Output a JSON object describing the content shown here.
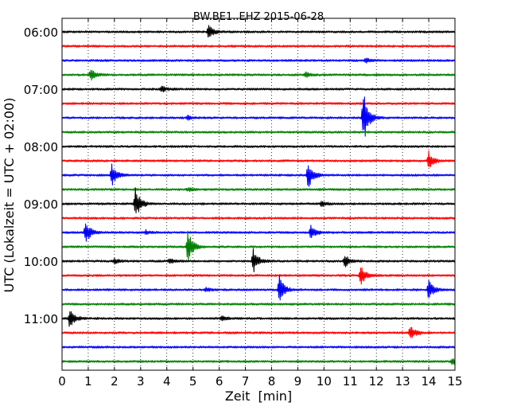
{
  "chart_data": {
    "type": "line",
    "title": "BW.BE1..EHZ 2015-06-28",
    "xlabel": "Zeit  [min]",
    "ylabel": "UTC (Lokalzeit = UTC + 02:00)",
    "xlim": [
      0,
      15
    ],
    "x_ticks": [
      0,
      1,
      2,
      3,
      4,
      5,
      6,
      7,
      8,
      9,
      10,
      11,
      12,
      13,
      14,
      15
    ],
    "x_tick_labels": [
      "0",
      "1",
      "2",
      "3",
      "4",
      "5",
      "6",
      "7",
      "8",
      "9",
      "10",
      "11",
      "12",
      "13",
      "14",
      "15"
    ],
    "row_interval_min": 15,
    "y_tick_labels": [
      "06:00",
      "07:00",
      "08:00",
      "09:00",
      "10:00",
      "11:00"
    ],
    "grid": "vertical dotted at each minute",
    "color_cycle": [
      "#000000",
      "#ff0000",
      "#0000ff",
      "#008000"
    ],
    "traces": [
      {
        "start": "06:00",
        "events": [
          {
            "t": 5.6,
            "amp": 0.35
          }
        ]
      },
      {
        "start": "06:15",
        "events": []
      },
      {
        "start": "06:30",
        "events": [
          {
            "t": 11.6,
            "amp": 0.12
          }
        ]
      },
      {
        "start": "06:45",
        "events": [
          {
            "t": 1.1,
            "amp": 0.3
          },
          {
            "t": 9.3,
            "amp": 0.12
          }
        ]
      },
      {
        "start": "07:00",
        "events": [
          {
            "t": 3.8,
            "amp": 0.15
          }
        ]
      },
      {
        "start": "07:15",
        "events": []
      },
      {
        "start": "07:30",
        "events": [
          {
            "t": 11.5,
            "amp": 1.5
          },
          {
            "t": 4.8,
            "amp": 0.1
          }
        ]
      },
      {
        "start": "07:45",
        "events": []
      },
      {
        "start": "08:00",
        "events": []
      },
      {
        "start": "08:15",
        "events": [
          {
            "t": 14.0,
            "amp": 0.45
          }
        ]
      },
      {
        "start": "08:30",
        "events": [
          {
            "t": 1.9,
            "amp": 0.55
          },
          {
            "t": 9.4,
            "amp": 0.75
          }
        ]
      },
      {
        "start": "08:45",
        "events": [
          {
            "t": 4.8,
            "amp": 0.1
          }
        ]
      },
      {
        "start": "09:00",
        "events": [
          {
            "t": 2.8,
            "amp": 0.8
          },
          {
            "t": 9.9,
            "amp": 0.15
          }
        ]
      },
      {
        "start": "09:15",
        "events": []
      },
      {
        "start": "09:30",
        "events": [
          {
            "t": 0.9,
            "amp": 0.6
          },
          {
            "t": 9.5,
            "amp": 0.35
          },
          {
            "t": 3.2,
            "amp": 0.1
          }
        ]
      },
      {
        "start": "09:45",
        "events": [
          {
            "t": 4.8,
            "amp": 0.85
          }
        ]
      },
      {
        "start": "10:00",
        "events": [
          {
            "t": 7.3,
            "amp": 0.6
          },
          {
            "t": 10.8,
            "amp": 0.3
          },
          {
            "t": 2.0,
            "amp": 0.12
          },
          {
            "t": 4.1,
            "amp": 0.12
          }
        ]
      },
      {
        "start": "10:15",
        "events": [
          {
            "t": 11.4,
            "amp": 0.55
          }
        ]
      },
      {
        "start": "10:30",
        "events": [
          {
            "t": 8.3,
            "amp": 0.7
          },
          {
            "t": 14.0,
            "amp": 0.5
          },
          {
            "t": 5.5,
            "amp": 0.1
          }
        ]
      },
      {
        "start": "10:45",
        "events": []
      },
      {
        "start": "11:00",
        "events": [
          {
            "t": 0.3,
            "amp": 0.55
          },
          {
            "t": 6.1,
            "amp": 0.12
          }
        ]
      },
      {
        "start": "11:15",
        "events": [
          {
            "t": 13.3,
            "amp": 0.4
          }
        ]
      },
      {
        "start": "11:30",
        "events": []
      },
      {
        "start": "11:45",
        "events": [
          {
            "t": 14.9,
            "amp": 0.2
          }
        ]
      }
    ]
  }
}
